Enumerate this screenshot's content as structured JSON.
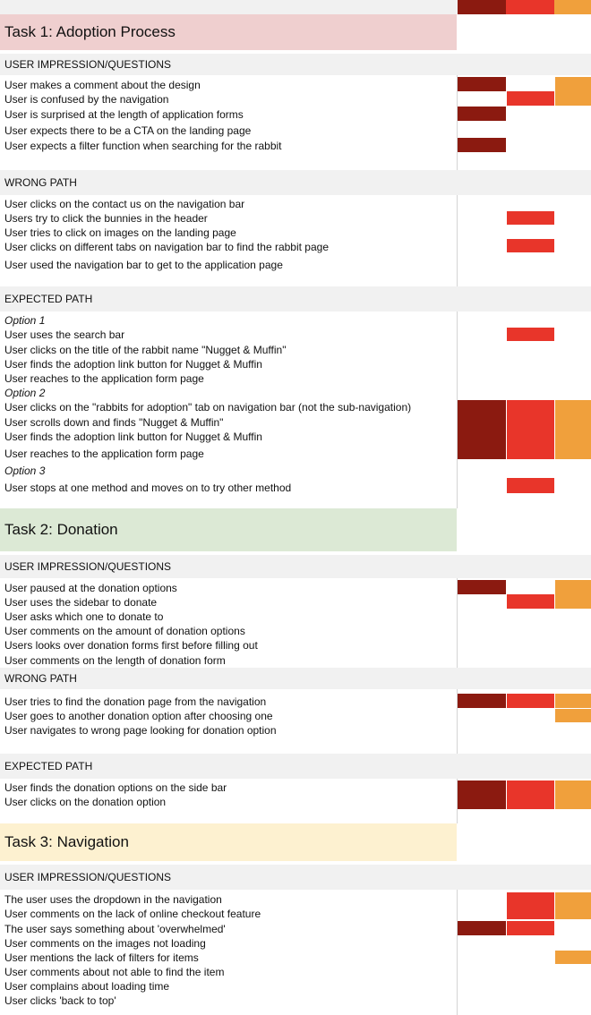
{
  "colors": {
    "dark_red": "#8b1a10",
    "red": "#e8352a",
    "orange": "#f0a03c",
    "task1_bg": "#efcfcf",
    "task2_bg": "#dce9d5",
    "task3_bg": "#fdf1d0",
    "section_bg": "#f1f1f1"
  },
  "tasks": [
    {
      "title": "Task 1: Adoption Process",
      "sections": [
        {
          "heading": "USER IMPRESSION/QUESTIONS",
          "lines": [
            "User makes a comment about the design",
            "User is confused by the navigation",
            "User is surprised at the length of application forms",
            "User expects there to be a CTA on the landing page",
            "User expects a filter function when searching for the rabbit"
          ]
        },
        {
          "heading": "WRONG PATH",
          "lines": [
            "User clicks on the contact us on the navigation bar",
            "Users try to click the bunnies in the header",
            "User tries to click on images on the landing page",
            "User clicks on different tabs on navigation bar to find the rabbit page",
            "User used the navigation bar to get to the application page"
          ]
        },
        {
          "heading": "EXPECTED PATH",
          "lines": [
            "Option 1",
            "User uses the search bar",
            "User clicks on the title of the rabbit name \"Nugget & Muffin\"",
            "User finds the adoption link button for Nugget & Muffin",
            "User reaches to the application form page",
            "Option 2",
            "User clicks on the \"rabbits for adoption\" tab on navigation bar (not the sub-navigation)",
            "User scrolls down and finds \"Nugget & Muffin\"",
            "User finds the adoption link button for Nugget & Muffin",
            "User reaches to the application form page",
            "Option 3",
            "User stops at one method and moves on to try other method"
          ]
        }
      ]
    },
    {
      "title": "Task 2: Donation",
      "sections": [
        {
          "heading": "USER IMPRESSION/QUESTIONS",
          "lines": [
            "User paused at the donation options",
            "User uses the sidebar to donate",
            "User asks which one to donate to",
            "User comments on the amount of donation options",
            "Users looks over donation forms first before filling out",
            "User comments on the length of donation form"
          ]
        },
        {
          "heading": "WRONG PATH",
          "lines": [
            "User tries to find the donation page from the navigation",
            "User goes to another donation option after choosing one",
            "User navigates to wrong page looking for donation option"
          ]
        },
        {
          "heading": "EXPECTED PATH",
          "lines": [
            "User finds the donation options on the side bar",
            "User clicks on the donation option"
          ]
        }
      ]
    },
    {
      "title": "Task 3: Navigation",
      "sections": [
        {
          "heading": "USER IMPRESSION/QUESTIONS",
          "lines": [
            "The user uses the dropdown in the navigation",
            "User comments on the lack of online checkout feature",
            "The user says something about 'overwhelmed'",
            "User comments on the images not loading",
            "User mentions the lack of filters for items",
            "User comments about not able to find the item",
            "User complains about loading time",
            "User clicks 'back to top'"
          ]
        }
      ]
    }
  ]
}
